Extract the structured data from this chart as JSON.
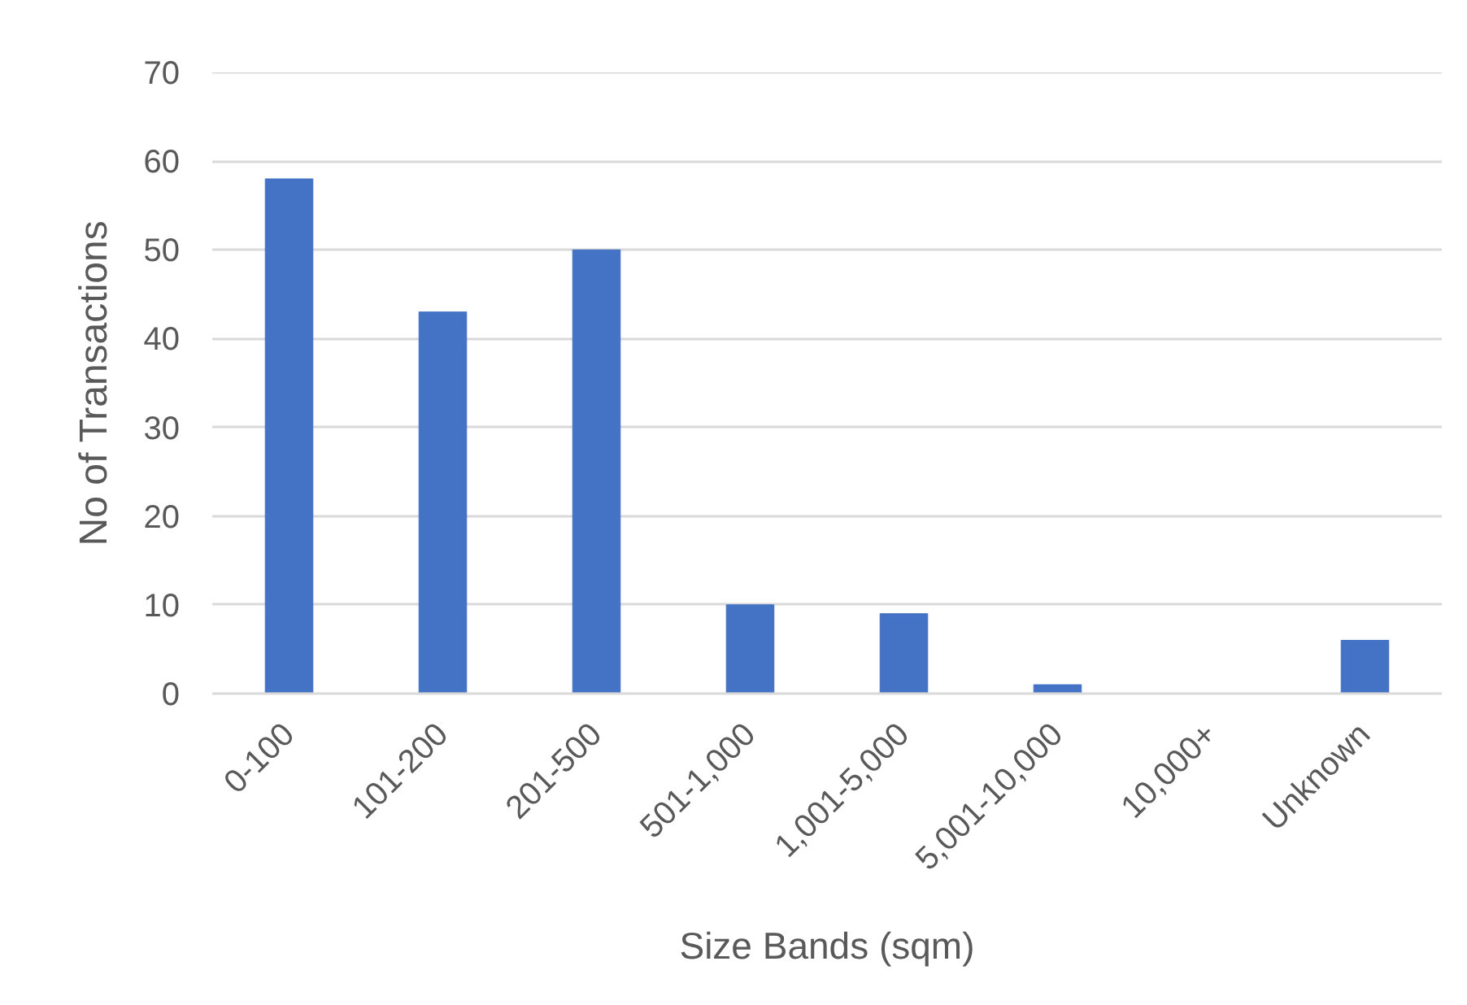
{
  "chart_data": {
    "type": "bar",
    "xlabel": "Size Bands (sqm)",
    "ylabel": "No of Transactions",
    "categories": [
      "0-100",
      "101-200",
      "201-500",
      "501-1,000",
      "1,001-5,000",
      "5,001-10,000",
      "10,000+",
      "Unknown"
    ],
    "values": [
      58,
      43,
      50,
      10,
      9,
      1,
      0,
      6
    ],
    "color": "#4472c4",
    "ylim": [
      0,
      70
    ],
    "yticks": [
      0,
      10,
      20,
      30,
      40,
      50,
      60,
      70
    ],
    "grid": "y"
  }
}
